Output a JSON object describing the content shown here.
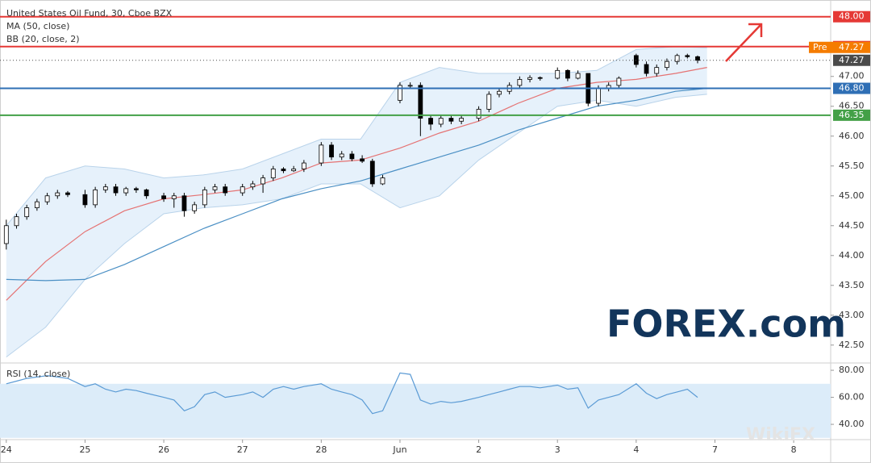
{
  "chart_data": [
    {
      "type": "candlestick",
      "title": "United States Oil Fund, 30, Cboe BZX",
      "xlim": [
        -0.08,
        10.47
      ],
      "ylim": [
        42.2,
        48.28
      ],
      "yticks": [
        {
          "value": 42.5,
          "label": "42.50"
        },
        {
          "value": 43,
          "label": "43.00"
        },
        {
          "value": 43.5,
          "label": "43.50"
        },
        {
          "value": 44,
          "label": "44.00"
        },
        {
          "value": 44.5,
          "label": "44.50"
        },
        {
          "value": 45,
          "label": "45.00"
        },
        {
          "value": 45.5,
          "label": "45.50"
        },
        {
          "value": 46,
          "label": "46.00"
        },
        {
          "value": 46.5,
          "label": "46.50"
        },
        {
          "value": 47,
          "label": "47.00"
        }
      ],
      "up_color": "#ffffff",
      "down_color": "#000000",
      "x": [
        0,
        0.13,
        0.26,
        0.39,
        0.52,
        0.65,
        0.78,
        1,
        1.13,
        1.26,
        1.39,
        1.52,
        1.65,
        1.78,
        2,
        2.13,
        2.26,
        2.39,
        2.52,
        2.65,
        2.78,
        3,
        3.13,
        3.26,
        3.39,
        3.52,
        3.65,
        3.78,
        4,
        4.13,
        4.26,
        4.39,
        4.52,
        4.65,
        4.78,
        5,
        5.13,
        5.26,
        5.39,
        5.52,
        5.65,
        5.78,
        6,
        6.13,
        6.26,
        6.39,
        6.52,
        6.65,
        6.78,
        7,
        7.13,
        7.26,
        7.39,
        7.52,
        7.65,
        7.78,
        8,
        8.13,
        8.26,
        8.39,
        8.52,
        8.65,
        8.78
      ],
      "open": [
        44.2,
        44.5,
        44.65,
        44.8,
        44.9,
        45.0,
        45.05,
        45.02,
        44.85,
        45.1,
        45.15,
        45.05,
        45.12,
        45.1,
        45.0,
        44.95,
        45.0,
        44.75,
        44.85,
        45.1,
        45.15,
        45.05,
        45.15,
        45.2,
        45.3,
        45.45,
        45.42,
        45.45,
        45.55,
        45.85,
        45.65,
        45.7,
        45.62,
        45.58,
        45.2,
        46.6,
        46.85,
        46.85,
        46.3,
        46.2,
        46.3,
        46.25,
        46.3,
        46.45,
        46.7,
        46.75,
        46.85,
        46.95,
        46.98,
        46.97,
        47.1,
        46.97,
        47.05,
        46.55,
        46.8,
        46.85,
        47.35,
        47.2,
        47.05,
        47.15,
        47.25,
        47.35,
        47.33
      ],
      "high": [
        44.6,
        44.7,
        44.85,
        44.95,
        45.05,
        45.1,
        45.08,
        45.1,
        45.15,
        45.2,
        45.2,
        45.15,
        45.15,
        45.12,
        45.05,
        45.05,
        45.05,
        44.9,
        45.15,
        45.2,
        45.2,
        45.2,
        45.25,
        45.35,
        45.5,
        45.48,
        45.5,
        45.6,
        45.9,
        45.9,
        45.75,
        45.75,
        45.68,
        45.62,
        45.35,
        46.9,
        46.9,
        46.9,
        46.35,
        46.35,
        46.35,
        46.35,
        46.5,
        46.75,
        46.8,
        46.9,
        47.0,
        47.02,
        47.0,
        47.15,
        47.12,
        47.1,
        47.05,
        46.85,
        46.9,
        47.0,
        47.38,
        47.25,
        47.2,
        47.3,
        47.38,
        47.38,
        47.35
      ],
      "low": [
        44.1,
        44.45,
        44.6,
        44.75,
        44.85,
        44.95,
        44.98,
        44.8,
        44.8,
        45.05,
        45.0,
        45.0,
        45.05,
        44.95,
        44.9,
        44.8,
        44.65,
        44.7,
        44.8,
        45.05,
        45.0,
        45.0,
        45.1,
        45.05,
        45.25,
        45.38,
        45.4,
        45.4,
        45.5,
        45.6,
        45.6,
        45.58,
        45.55,
        45.15,
        45.18,
        46.55,
        46.8,
        46.0,
        46.1,
        46.15,
        46.2,
        46.2,
        46.25,
        46.4,
        46.65,
        46.7,
        46.8,
        46.9,
        46.93,
        46.95,
        46.92,
        46.95,
        46.5,
        46.5,
        46.75,
        46.8,
        47.15,
        47.0,
        47.0,
        47.1,
        47.2,
        47.3,
        47.22
      ],
      "close": [
        44.5,
        44.65,
        44.8,
        44.9,
        45.0,
        45.05,
        45.02,
        44.85,
        45.1,
        45.15,
        45.05,
        45.12,
        45.1,
        45.0,
        44.95,
        45.0,
        44.75,
        44.85,
        45.1,
        45.15,
        45.05,
        45.15,
        45.2,
        45.3,
        45.45,
        45.42,
        45.45,
        45.55,
        45.85,
        45.65,
        45.7,
        45.62,
        45.58,
        45.2,
        45.3,
        46.85,
        46.85,
        46.3,
        46.2,
        46.3,
        46.25,
        46.3,
        46.45,
        46.7,
        46.75,
        46.85,
        46.95,
        46.98,
        46.97,
        47.1,
        46.97,
        47.05,
        46.55,
        46.8,
        46.85,
        46.97,
        47.2,
        47.05,
        47.15,
        47.25,
        47.35,
        47.33,
        47.27
      ],
      "ma": {
        "name": "MA (50, close)",
        "color": "#4a8fc4",
        "x": [
          0,
          0.5,
          1,
          1.5,
          2,
          2.5,
          3,
          3.5,
          4,
          4.5,
          5,
          5.5,
          6,
          6.5,
          7,
          7.5,
          8,
          8.5,
          8.9
        ],
        "values": [
          43.6,
          43.58,
          43.6,
          43.85,
          44.15,
          44.45,
          44.7,
          44.95,
          45.12,
          45.25,
          45.45,
          45.65,
          45.85,
          46.1,
          46.3,
          46.5,
          46.6,
          46.75,
          46.8
        ]
      },
      "bands": {
        "name": "BB (20, close, 2)",
        "color": "#e57373",
        "edge_color": "#b9d3ea",
        "fill": "#e6f1fb",
        "x": [
          0,
          0.5,
          1,
          1.5,
          2,
          2.5,
          3,
          3.5,
          4,
          4.5,
          5,
          5.5,
          6,
          6.5,
          7,
          7.5,
          8,
          8.5,
          8.9
        ],
        "upper": [
          44.5,
          45.3,
          45.5,
          45.45,
          45.3,
          45.35,
          45.45,
          45.7,
          45.95,
          45.95,
          46.9,
          47.15,
          47.05,
          47.05,
          47.05,
          47.1,
          47.45,
          47.5,
          47.48
        ],
        "basis": [
          43.25,
          43.9,
          44.4,
          44.75,
          44.95,
          45.02,
          45.1,
          45.3,
          45.55,
          45.6,
          45.8,
          46.05,
          46.25,
          46.55,
          46.8,
          46.9,
          46.95,
          47.05,
          47.15
        ],
        "lower": [
          42.3,
          42.8,
          43.6,
          44.2,
          44.7,
          44.8,
          44.85,
          44.95,
          45.2,
          45.2,
          44.8,
          45.0,
          45.6,
          46.05,
          46.5,
          46.6,
          46.5,
          46.65,
          46.7
        ]
      },
      "levels": [
        {
          "value": 48,
          "label": "48.00",
          "color": "#e53935",
          "line": "solid"
        },
        {
          "value": 47.5,
          "label": "47.50",
          "color": "#e53935",
          "line": "solid"
        },
        {
          "value": 47.27,
          "tag": "Pre",
          "label": "47.27",
          "color": "#f57c00",
          "line": "none"
        },
        {
          "value": 47.27,
          "label": "47.27",
          "color": "#4a4a4a",
          "line": "dotted"
        },
        {
          "value": 46.8,
          "label": "46.80",
          "color": "#2f6fb5",
          "line": "solid"
        },
        {
          "value": 46.35,
          "label": "46.35",
          "color": "#43a047",
          "line": "solid"
        }
      ]
    },
    {
      "type": "line",
      "title": "RSI (14, close)",
      "color": "#5b9bd5",
      "band": [
        30,
        70
      ],
      "band_color": "#dcecf9",
      "xlim": [
        -0.08,
        10.47
      ],
      "ylim": [
        28.7,
        85.4
      ],
      "yticks": [
        {
          "value": 40,
          "label": "40.00"
        },
        {
          "value": 60,
          "label": "60.00"
        },
        {
          "value": 80,
          "label": "80.00"
        }
      ],
      "xticks": [
        {
          "value": 0,
          "label": "24"
        },
        {
          "value": 1,
          "label": "25"
        },
        {
          "value": 2,
          "label": "26"
        },
        {
          "value": 3,
          "label": "27"
        },
        {
          "value": 4,
          "label": "28"
        },
        {
          "value": 5,
          "label": "Jun"
        },
        {
          "value": 6,
          "label": "2"
        },
        {
          "value": 7,
          "label": "3"
        },
        {
          "value": 8,
          "label": "4"
        },
        {
          "value": 9,
          "label": "7"
        },
        {
          "value": 10,
          "label": "8"
        }
      ],
      "x": [
        0,
        0.13,
        0.26,
        0.39,
        0.52,
        0.65,
        0.78,
        1,
        1.13,
        1.26,
        1.39,
        1.52,
        1.65,
        1.78,
        2,
        2.13,
        2.26,
        2.39,
        2.52,
        2.65,
        2.78,
        3,
        3.13,
        3.26,
        3.39,
        3.52,
        3.65,
        3.78,
        4,
        4.13,
        4.26,
        4.39,
        4.52,
        4.65,
        4.78,
        5,
        5.13,
        5.26,
        5.39,
        5.52,
        5.65,
        5.78,
        6,
        6.13,
        6.26,
        6.39,
        6.52,
        6.65,
        6.78,
        7,
        7.13,
        7.26,
        7.39,
        7.52,
        7.65,
        7.78,
        8,
        8.13,
        8.26,
        8.39,
        8.52,
        8.65,
        8.78
      ],
      "values": [
        70,
        72,
        74,
        75,
        76,
        75,
        74,
        68,
        70,
        66,
        64,
        66,
        65,
        63,
        60,
        58,
        50,
        53,
        62,
        64,
        60,
        62,
        64,
        60,
        66,
        68,
        66,
        68,
        70,
        66,
        64,
        62,
        58,
        48,
        50,
        78,
        77,
        58,
        55,
        57,
        56,
        57,
        60,
        62,
        64,
        66,
        68,
        68,
        67,
        69,
        66,
        67,
        52,
        58,
        60,
        62,
        70,
        63,
        59,
        62,
        64,
        66,
        60
      ]
    }
  ],
  "branding": {
    "logo": "FOREX.com",
    "watermark": "WikiFX"
  }
}
